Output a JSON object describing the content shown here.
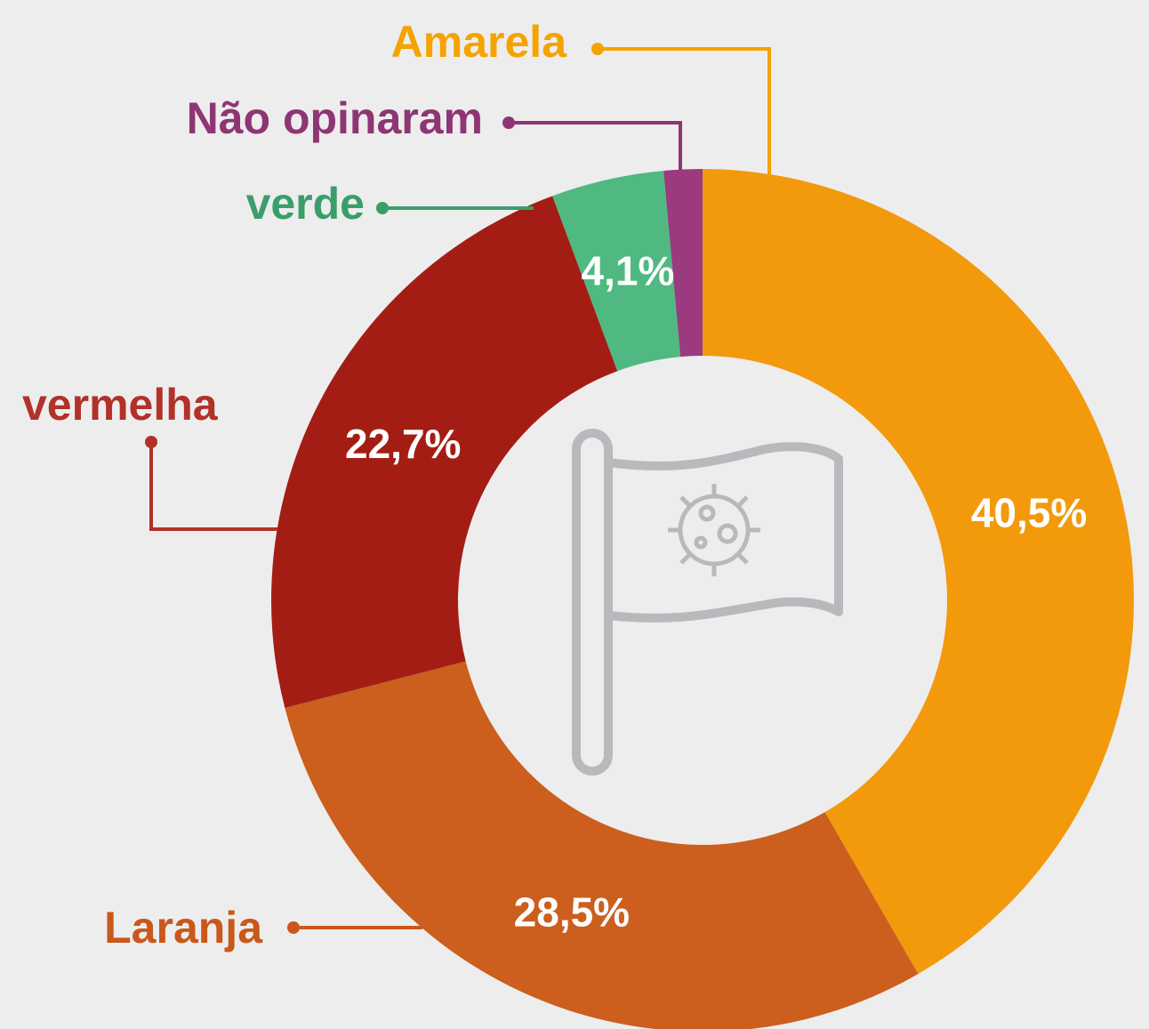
{
  "chart_data": {
    "type": "donut",
    "categories": [
      "Amarela",
      "Laranja",
      "vermelha",
      "verde",
      "Não opinaram"
    ],
    "values": [
      40.5,
      28.5,
      22.7,
      4.1,
      1.4
    ],
    "value_labels": [
      "40,5%",
      "28,5%",
      "22,7%",
      "4,1%",
      null
    ],
    "colors": [
      "#f29a0c",
      "#cc5e1e",
      "#a41d14",
      "#4fb981",
      "#9b3a7f"
    ]
  }
}
